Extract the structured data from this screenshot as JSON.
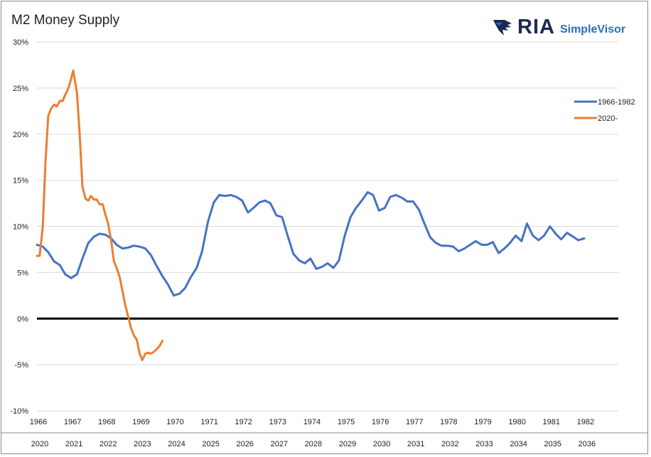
{
  "title": "M2 Money Supply",
  "logo": {
    "name": "eagle-logo-icon",
    "text": "RIA",
    "subtitle": "SimpleVisor"
  },
  "colors": {
    "series1": "#4472c4",
    "series2": "#ed7d31",
    "zero_line": "#000000",
    "grid": "#d9d9d9",
    "logo_dark": "#1b2a52",
    "logo_blue": "#2a6bc4"
  },
  "chart_data": {
    "type": "line",
    "title": "M2 Money Supply",
    "ylim": [
      -10,
      30
    ],
    "y_ticks": [
      "30%",
      "25%",
      "20%",
      "15%",
      "10%",
      "5%",
      "0%",
      "-5%",
      "-10%"
    ],
    "y_tick_values": [
      30,
      25,
      20,
      15,
      10,
      5,
      0,
      -5,
      -10
    ],
    "x_ticks_top": [
      "1966",
      "1967",
      "1968",
      "1969",
      "1970",
      "1971",
      "1972",
      "1973",
      "1974",
      "1975",
      "1976",
      "1977",
      "1978",
      "1979",
      "1980",
      "1981",
      "1982"
    ],
    "x_ticks_top_pos": [
      1966.0,
      1967.0,
      1968.0,
      1969.0,
      1970.0,
      1971.0,
      1972.0,
      1973.0,
      1974.0,
      1975.0,
      1976.0,
      1977.0,
      1978.0,
      1979.0,
      1980.0,
      1981.0,
      1982.0
    ],
    "x_ticks_bottom": [
      "2020",
      "2021",
      "2022",
      "2023",
      "2024",
      "2025",
      "2026",
      "2027",
      "2028",
      "2029",
      "2030",
      "2031",
      "2032",
      "2033",
      "2034",
      "2035",
      "2036"
    ],
    "x_ticks_bottom_pos": [
      1966.0,
      1967.0,
      1968.0,
      1969.0,
      1970.0,
      1971.0,
      1972.0,
      1973.0,
      1974.0,
      1975.0,
      1976.0,
      1977.0,
      1978.0,
      1979.0,
      1980.0,
      1981.0,
      1982.0
    ],
    "xlim": [
      1966,
      1983
    ],
    "grid": true,
    "legend_position": "right",
    "series": [
      {
        "name": "1966-1982",
        "color": "#4472c4",
        "points": [
          [
            1966.0,
            8.0
          ],
          [
            1966.17,
            7.8
          ],
          [
            1966.33,
            7.2
          ],
          [
            1966.5,
            6.2
          ],
          [
            1966.67,
            5.8
          ],
          [
            1966.83,
            4.8
          ],
          [
            1967.0,
            4.4
          ],
          [
            1967.17,
            4.8
          ],
          [
            1967.33,
            6.5
          ],
          [
            1967.5,
            8.2
          ],
          [
            1967.67,
            8.9
          ],
          [
            1967.83,
            9.2
          ],
          [
            1968.0,
            9.1
          ],
          [
            1968.17,
            8.7
          ],
          [
            1968.33,
            8.0
          ],
          [
            1968.5,
            7.6
          ],
          [
            1968.67,
            7.7
          ],
          [
            1968.83,
            7.9
          ],
          [
            1969.0,
            7.8
          ],
          [
            1969.17,
            7.6
          ],
          [
            1969.33,
            6.9
          ],
          [
            1969.5,
            5.7
          ],
          [
            1969.67,
            4.6
          ],
          [
            1969.83,
            3.7
          ],
          [
            1970.0,
            2.5
          ],
          [
            1970.17,
            2.7
          ],
          [
            1970.33,
            3.3
          ],
          [
            1970.5,
            4.5
          ],
          [
            1970.67,
            5.5
          ],
          [
            1970.83,
            7.3
          ],
          [
            1971.0,
            10.5
          ],
          [
            1971.17,
            12.6
          ],
          [
            1971.33,
            13.4
          ],
          [
            1971.5,
            13.3
          ],
          [
            1971.67,
            13.4
          ],
          [
            1971.83,
            13.2
          ],
          [
            1972.0,
            12.8
          ],
          [
            1972.17,
            11.5
          ],
          [
            1972.33,
            12.0
          ],
          [
            1972.5,
            12.6
          ],
          [
            1972.67,
            12.8
          ],
          [
            1972.83,
            12.5
          ],
          [
            1973.0,
            11.2
          ],
          [
            1973.17,
            11.0
          ],
          [
            1973.33,
            9.0
          ],
          [
            1973.5,
            7.0
          ],
          [
            1973.67,
            6.3
          ],
          [
            1973.83,
            6.0
          ],
          [
            1974.0,
            6.5
          ],
          [
            1974.17,
            5.4
          ],
          [
            1974.33,
            5.6
          ],
          [
            1974.5,
            6.0
          ],
          [
            1974.67,
            5.5
          ],
          [
            1974.83,
            6.3
          ],
          [
            1975.0,
            9.0
          ],
          [
            1975.17,
            11.0
          ],
          [
            1975.33,
            12.0
          ],
          [
            1975.5,
            12.8
          ],
          [
            1975.67,
            13.7
          ],
          [
            1975.83,
            13.4
          ],
          [
            1976.0,
            11.7
          ],
          [
            1976.17,
            12.0
          ],
          [
            1976.33,
            13.2
          ],
          [
            1976.5,
            13.4
          ],
          [
            1976.67,
            13.1
          ],
          [
            1976.83,
            12.7
          ],
          [
            1977.0,
            12.7
          ],
          [
            1977.17,
            11.8
          ],
          [
            1977.33,
            10.3
          ],
          [
            1977.5,
            8.8
          ],
          [
            1977.67,
            8.2
          ],
          [
            1977.83,
            7.9
          ],
          [
            1978.0,
            7.9
          ],
          [
            1978.17,
            7.8
          ],
          [
            1978.33,
            7.3
          ],
          [
            1978.5,
            7.6
          ],
          [
            1978.67,
            8.0
          ],
          [
            1978.83,
            8.4
          ],
          [
            1979.0,
            8.0
          ],
          [
            1979.17,
            8.0
          ],
          [
            1979.33,
            8.3
          ],
          [
            1979.5,
            7.1
          ],
          [
            1979.67,
            7.6
          ],
          [
            1979.83,
            8.2
          ],
          [
            1980.0,
            9.0
          ],
          [
            1980.17,
            8.4
          ],
          [
            1980.33,
            10.3
          ],
          [
            1980.5,
            9.0
          ],
          [
            1980.67,
            8.5
          ],
          [
            1980.83,
            9.0
          ],
          [
            1981.0,
            10.0
          ],
          [
            1981.17,
            9.2
          ],
          [
            1981.33,
            8.6
          ],
          [
            1981.5,
            9.3
          ],
          [
            1981.67,
            8.9
          ],
          [
            1981.83,
            8.5
          ],
          [
            1982.0,
            8.7
          ]
        ]
      },
      {
        "name": "2020-",
        "color": "#ed7d31",
        "points": [
          [
            1966.0,
            6.8
          ],
          [
            1966.08,
            6.8
          ],
          [
            1966.17,
            10.0
          ],
          [
            1966.25,
            17.0
          ],
          [
            1966.33,
            22.0
          ],
          [
            1966.42,
            22.8
          ],
          [
            1966.5,
            23.2
          ],
          [
            1966.58,
            23.0
          ],
          [
            1966.67,
            23.6
          ],
          [
            1966.75,
            23.6
          ],
          [
            1966.83,
            24.3
          ],
          [
            1966.92,
            25.0
          ],
          [
            1967.0,
            26.0
          ],
          [
            1967.06,
            26.9
          ],
          [
            1967.17,
            24.5
          ],
          [
            1967.25,
            20.0
          ],
          [
            1967.33,
            14.3
          ],
          [
            1967.42,
            13.0
          ],
          [
            1967.5,
            12.8
          ],
          [
            1967.58,
            13.3
          ],
          [
            1967.67,
            12.9
          ],
          [
            1967.75,
            12.9
          ],
          [
            1967.83,
            12.4
          ],
          [
            1967.92,
            12.4
          ],
          [
            1968.0,
            11.3
          ],
          [
            1968.08,
            10.3
          ],
          [
            1968.17,
            8.5
          ],
          [
            1968.25,
            6.2
          ],
          [
            1968.33,
            5.5
          ],
          [
            1968.42,
            4.5
          ],
          [
            1968.5,
            3.0
          ],
          [
            1968.58,
            1.5
          ],
          [
            1968.67,
            0.2
          ],
          [
            1968.75,
            -1.0
          ],
          [
            1968.83,
            -1.8
          ],
          [
            1968.92,
            -2.3
          ],
          [
            1969.0,
            -3.8
          ],
          [
            1969.08,
            -4.5
          ],
          [
            1969.17,
            -3.8
          ],
          [
            1969.25,
            -3.7
          ],
          [
            1969.33,
            -3.8
          ],
          [
            1969.42,
            -3.6
          ],
          [
            1969.5,
            -3.3
          ],
          [
            1969.58,
            -3.0
          ],
          [
            1969.67,
            -2.4
          ]
        ]
      }
    ]
  }
}
